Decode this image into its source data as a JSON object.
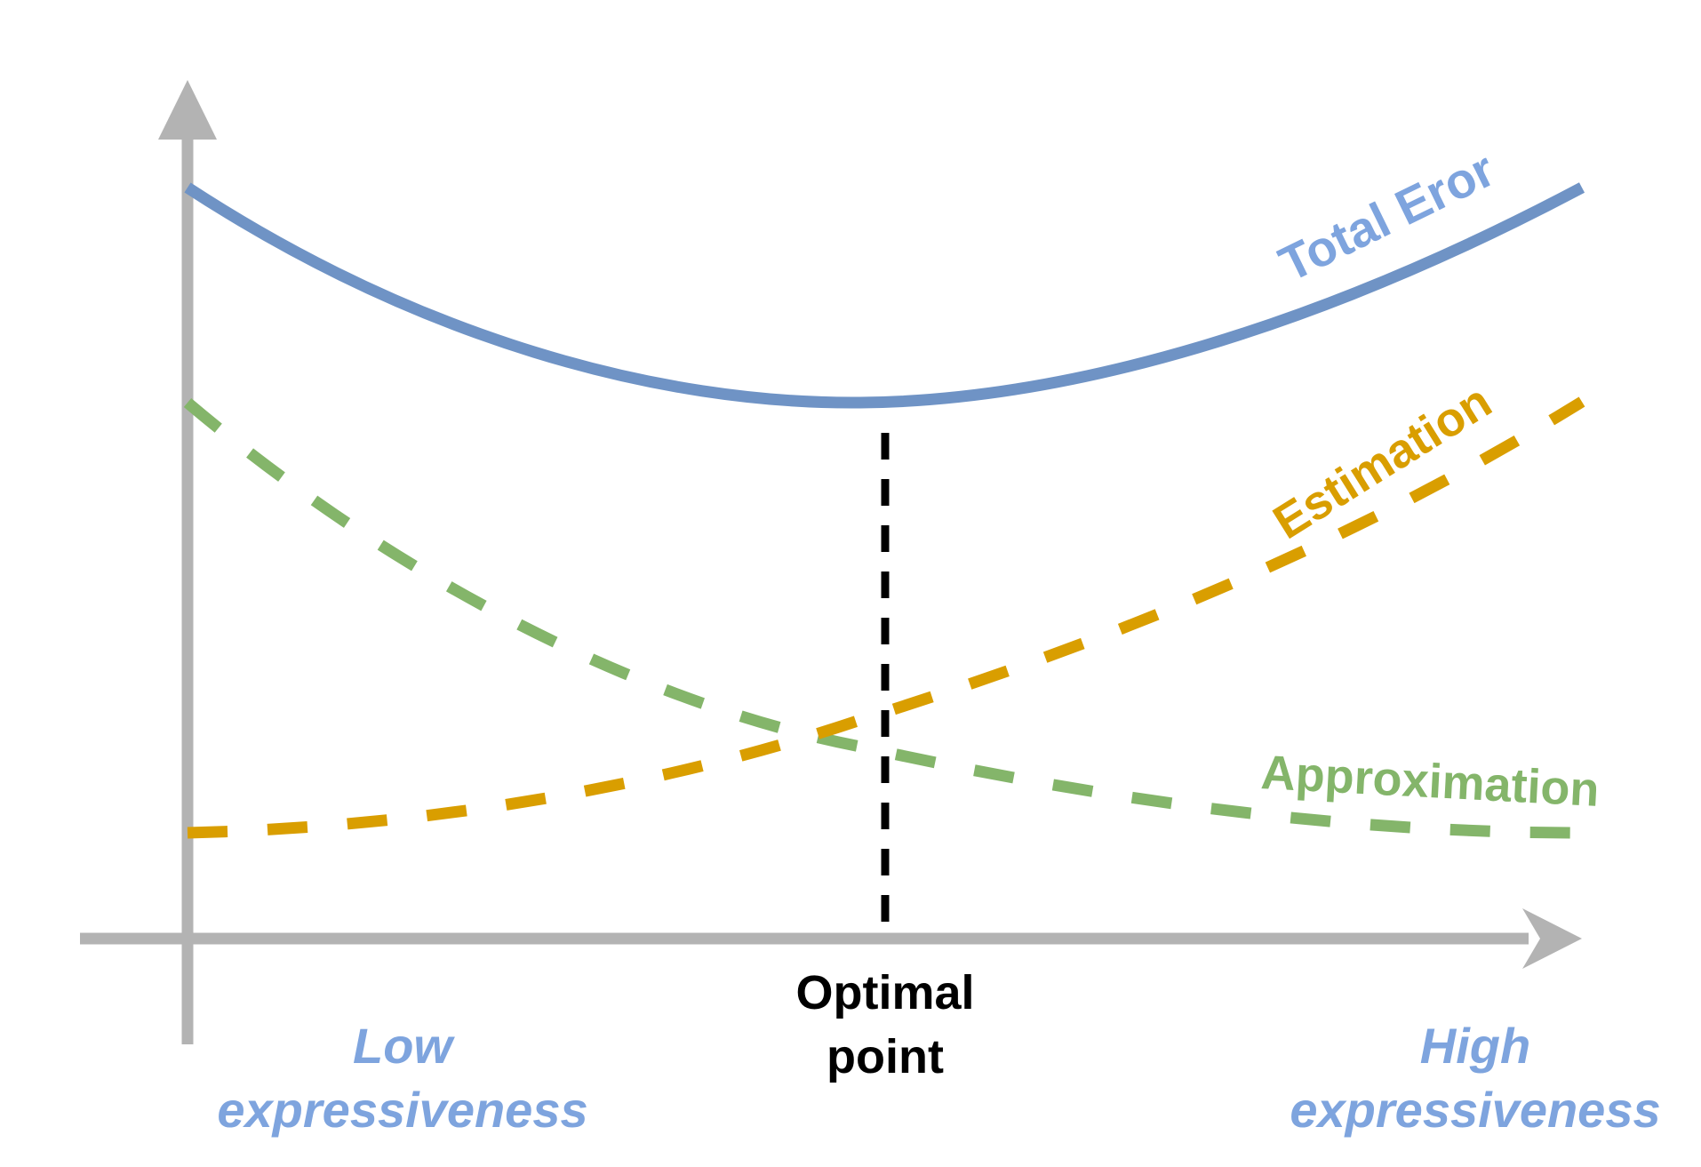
{
  "colors": {
    "axis": "#b3b3b3",
    "total_error": "#6f93c5",
    "total_error_label": "#7ea4de",
    "estimation": "#d99e00",
    "approximation": "#84b56a",
    "optimal_line": "#000000",
    "expressiveness_label": "#7ea4de"
  },
  "curves": {
    "total_error": {
      "label": "Total Eror",
      "style": "solid"
    },
    "estimation": {
      "label": "Estimation",
      "style": "dashed"
    },
    "approximation": {
      "label": "Approximation",
      "style": "dashed"
    }
  },
  "optimal": {
    "line1": "Optimal",
    "line2": "point"
  },
  "x_axis": {
    "low": {
      "line1": "Low",
      "line2": "expressiveness"
    },
    "high": {
      "line1": "High",
      "line2": "expressiveness"
    }
  }
}
